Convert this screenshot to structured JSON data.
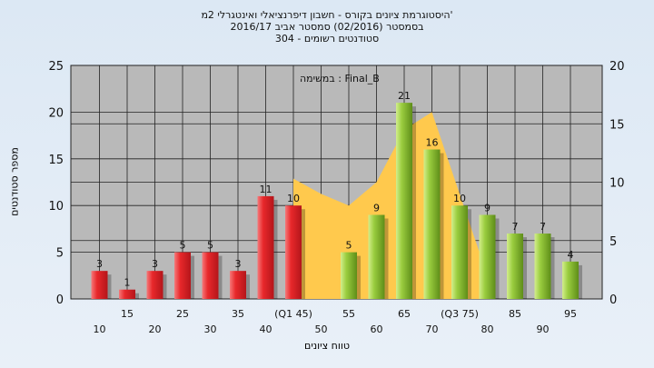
{
  "header": {
    "line1": "היסטוגרמת ציונים בקורס - חשבון דיפרנציאלי ואינטגרלי 2מ'",
    "line2": "בסמסטר  (02/2016)  סמסטר אביב 2016/17",
    "line3": "סטודנטים רשומים - 304"
  },
  "chart_data": {
    "type": "bar",
    "ylabel": "מספר סטודנטים",
    "xlabel": "טווח ציונים",
    "annotation": "במשימה : Final_B",
    "ylim": [
      0,
      25
    ],
    "y2lim": [
      0,
      20
    ],
    "yticks": [
      "0",
      "5",
      "10",
      "15",
      "20",
      "25"
    ],
    "y2ticks": [
      "0",
      "5",
      "10",
      "15",
      "20"
    ],
    "grid": true,
    "categories": [
      "10",
      "15",
      "20",
      "25",
      "30",
      "35",
      "40",
      "(Q1 45)",
      "50",
      "55",
      "60",
      "65",
      "70",
      "(Q3 75)",
      "80",
      "85",
      "90",
      "95"
    ],
    "values": [
      3,
      1,
      3,
      5,
      5,
      3,
      11,
      10,
      0,
      5,
      9,
      21,
      16,
      10,
      9,
      7,
      7,
      4
    ],
    "value_labels": [
      "3",
      "1",
      "3",
      "5",
      "5",
      "3",
      "11",
      "10",
      "",
      "5",
      "9",
      "21",
      "16",
      "10",
      "9",
      "7",
      "7",
      "4"
    ],
    "area": {
      "categories": [
        "(Q1 45)",
        "50",
        "55",
        "60",
        "65",
        "70",
        "(Q3 75)",
        "80"
      ],
      "values": [
        10.3,
        9,
        8,
        10,
        14.5,
        16,
        9,
        2
      ]
    },
    "colors": {
      "red_bar": "#e8282b",
      "green_bar": "#9acd3f",
      "area": "#ffc94d",
      "plot_bg": "#b9b9b9"
    }
  }
}
